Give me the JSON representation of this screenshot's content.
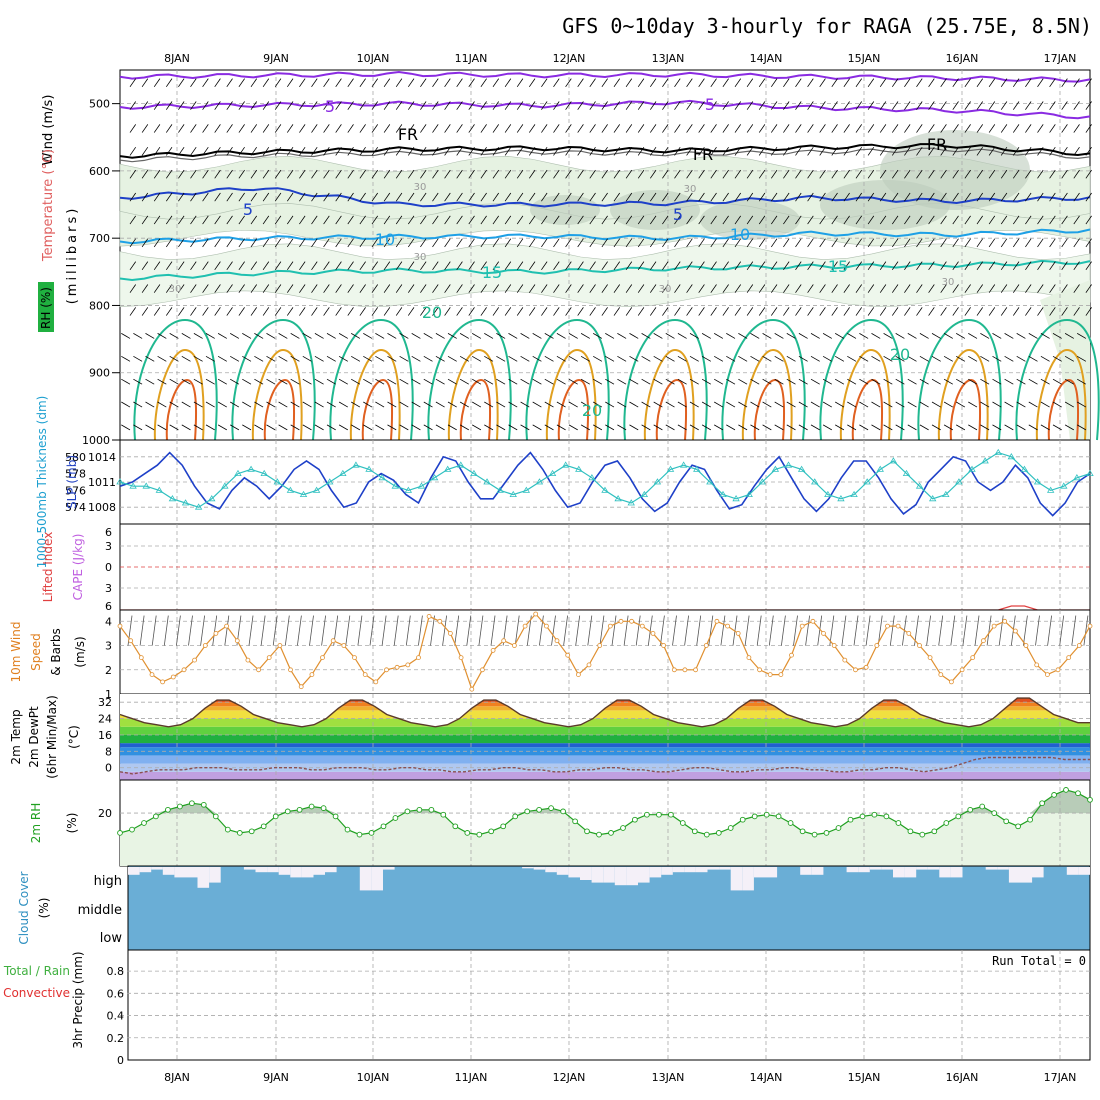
{
  "title": "GFS 0~10day 3-hourly for RAGA (25.75E, 8.5N)",
  "colors": {
    "purple": "#8a2be2",
    "blue": "#1e40c8",
    "lightblue": "#1ea0e6",
    "teal": "#20c0b0",
    "green": "#20b890",
    "orange": "#e0a020",
    "darkorange": "#e06020",
    "magenta": "#e01070",
    "cyan": "#30c0c0",
    "rhfill": "#e8f4e4",
    "cloud": "#6aaed6",
    "cloudlight": "#f4f0f8"
  },
  "dates": [
    "8JAN",
    "9JAN",
    "10JAN",
    "11JAN",
    "12JAN",
    "13JAN",
    "14JAN",
    "15JAN",
    "16JAN",
    "17JAN"
  ],
  "chart_data": [
    {
      "panel": "upper_air",
      "type": "heatmap",
      "ylabels": [
        "Wind (m/s)",
        "Temperature (°C)",
        "RH (%)",
        "(millibars)"
      ],
      "y_ticks": [
        500,
        600,
        700,
        800,
        900,
        1000
      ],
      "ylim": [
        1000,
        450
      ],
      "contour_labels": [
        "5",
        "5",
        "FR",
        "FR",
        "FR",
        "5",
        "5",
        "10",
        "10",
        "15",
        "15",
        "20",
        "20",
        "20",
        "30",
        "30",
        "30",
        "30",
        "30",
        "30"
      ],
      "isotherms": [
        {
          "name": "5",
          "pressure_levels": [
            505,
            502,
            500,
            503,
            498,
            506
          ]
        },
        {
          "name": "FR",
          "pressure_levels": [
            580,
            575,
            572,
            570,
            568,
            565
          ]
        },
        {
          "name": "5b",
          "pressure_levels": [
            650,
            640,
            655,
            650,
            648,
            645
          ]
        },
        {
          "name": "10",
          "pressure_levels": [
            705,
            700,
            698,
            695,
            700,
            690
          ]
        },
        {
          "name": "15",
          "pressure_levels": [
            760,
            750,
            752,
            748,
            745,
            740
          ]
        },
        {
          "name": "20",
          "pressure_levels": [
            820,
            840,
            810,
            830,
            820,
            810
          ]
        }
      ]
    },
    {
      "panel": "slp_thickness",
      "type": "line",
      "ylabels": [
        "1000-500mb Thickness (dm)",
        "SLP (mb)"
      ],
      "y_ticks_left": [
        574,
        576,
        578,
        580
      ],
      "y_ticks_right": [
        1008,
        1011,
        1014
      ],
      "series": [
        {
          "name": "SLP (mb)",
          "axis": "right",
          "values": [
            1010.5,
            1011,
            1012,
            1013,
            1014.5,
            1013,
            1010.5,
            1008.5,
            1007.8,
            1010,
            1011.5,
            1010.5,
            1009,
            1010.5,
            1012.5,
            1013.5,
            1012.5,
            1010,
            1008,
            1008.5,
            1011,
            1012,
            1011.2,
            1009.5,
            1008.5,
            1011.5,
            1014,
            1013.5,
            1011,
            1009,
            1009,
            1011,
            1013,
            1014.5,
            1012.5,
            1010,
            1008,
            1008.5,
            1011,
            1013,
            1013.5,
            1011.5,
            1009,
            1007.5,
            1008.5,
            1011,
            1013,
            1012.5,
            1010,
            1007.8,
            1008.3,
            1010.5,
            1012.5,
            1014,
            1011.5,
            1009,
            1007.5,
            1009,
            1011.5,
            1013.5,
            1013.5,
            1011.5,
            1009,
            1007.2,
            1008.3,
            1011,
            1012.5,
            1014,
            1013.5,
            1011,
            1010,
            1011,
            1013,
            1011.5,
            1008.5,
            1007,
            1008.5,
            1011,
            1012
          ]
        },
        {
          "name": "Thickness (dm)",
          "axis": "left",
          "values": [
            577,
            576.5,
            576.5,
            576,
            575,
            574.5,
            574,
            575,
            576.5,
            578,
            578.5,
            578,
            577,
            576,
            575.5,
            576,
            577,
            578,
            579,
            578.5,
            577.5,
            576.5,
            576,
            576.5,
            577.5,
            578.5,
            579,
            578,
            577,
            576,
            575.5,
            576,
            577,
            578,
            579,
            578.5,
            577.5,
            576,
            575,
            574.5,
            575.5,
            577,
            578.5,
            579,
            578.5,
            577,
            575.5,
            575,
            575.5,
            577,
            578.5,
            579,
            578.5,
            577,
            575.5,
            575,
            575.5,
            577,
            578.5,
            579.5,
            578,
            576.5,
            575,
            575.5,
            577,
            578.5,
            579.5,
            580.5,
            580,
            578.5,
            577,
            576,
            576.5,
            577.5,
            578
          ]
        }
      ]
    },
    {
      "panel": "cape_li",
      "type": "line",
      "ylabels": [
        "Lifted Index",
        "CAPE (J/kg)"
      ],
      "y_ticks": [
        6,
        3,
        0,
        3,
        6
      ],
      "series": [
        {
          "name": "CAPE (J/kg)",
          "values": [
            0,
            0,
            0,
            0,
            0,
            0,
            0,
            0,
            0,
            0,
            0,
            0,
            0,
            0,
            0,
            0,
            0,
            0,
            0,
            0,
            0,
            0,
            0,
            0,
            0,
            0,
            0,
            0,
            0,
            0,
            0,
            0,
            0,
            0,
            0,
            0,
            0,
            0,
            0,
            0,
            0,
            0,
            0,
            0,
            0,
            0,
            0,
            0,
            0,
            0,
            0,
            0,
            0,
            0,
            0,
            0,
            0,
            0,
            0,
            0,
            0,
            0,
            0,
            0,
            0,
            0,
            0,
            0,
            4,
            4,
            0,
            0,
            0,
            0,
            0
          ]
        }
      ]
    },
    {
      "panel": "wind10m",
      "type": "line",
      "ylabels": [
        "10m Wind",
        "Speed",
        "& Barbs",
        "(m/s)"
      ],
      "y_ticks": [
        1,
        2,
        3,
        4
      ],
      "series": [
        {
          "name": "Speed",
          "values": [
            3.8,
            3.2,
            2.5,
            1.8,
            1.5,
            1.7,
            2.0,
            2.4,
            3.0,
            3.5,
            3.8,
            3.2,
            2.4,
            2.0,
            2.5,
            3.0,
            2.0,
            1.3,
            1.8,
            2.5,
            3.2,
            3.0,
            2.5,
            1.8,
            1.5,
            2.0,
            2.1,
            2.2,
            2.5,
            4.2,
            4.0,
            3.5,
            2.5,
            1.2,
            2.0,
            2.8,
            3.2,
            3.0,
            3.8,
            4.3,
            3.8,
            3.2,
            2.6,
            1.8,
            2.2,
            3.0,
            3.8,
            4.0,
            4.0,
            3.8,
            3.5,
            3.0,
            2.0,
            2.0,
            2.0,
            3.0,
            4.0,
            3.8,
            3.5,
            2.5,
            2.0,
            1.8,
            1.8,
            2.6,
            3.8,
            4.0,
            3.5,
            3.0,
            2.4,
            2.0,
            2.1,
            3.0,
            3.8,
            3.8,
            3.5,
            3.0,
            2.5,
            1.8,
            1.5,
            2.0,
            2.5,
            3.2,
            3.8,
            4.0,
            3.6,
            3.0,
            2.2,
            1.8,
            2.0,
            2.5,
            3.0,
            3.8
          ]
        }
      ]
    },
    {
      "panel": "temp2m",
      "type": "area",
      "ylabels": [
        "2m Temp",
        "2m DewPt",
        "(6hr Min/Max)",
        "(°C)"
      ],
      "y_ticks": [
        0,
        8,
        16,
        24,
        32
      ],
      "series": [
        {
          "name": "2m Temp",
          "values": [
            26,
            24,
            22,
            21,
            20,
            21,
            24,
            29,
            33,
            33,
            30,
            26,
            24,
            22,
            21,
            20,
            21,
            24,
            29,
            33,
            33,
            30,
            26,
            24,
            22,
            21,
            20,
            21,
            24,
            29,
            33,
            33,
            30,
            26,
            24,
            22,
            21,
            20,
            21,
            24,
            29,
            33,
            33,
            30,
            26,
            24,
            22,
            21,
            20,
            21,
            24,
            29,
            33,
            33,
            30,
            26,
            24,
            22,
            21,
            20,
            21,
            24,
            29,
            33,
            33,
            30,
            26,
            24,
            22,
            21,
            20,
            21,
            24,
            29,
            34,
            34,
            30,
            26,
            24,
            22,
            22
          ]
        },
        {
          "name": "2m DewPt",
          "values": [
            -2,
            -3,
            -2,
            -1,
            -1,
            -1,
            0,
            0,
            0,
            -1,
            -1,
            -1,
            0,
            0,
            0,
            -1,
            -1,
            0,
            0,
            0,
            -1,
            -1,
            0,
            0,
            -1,
            -1,
            -2,
            -2,
            -1,
            -1,
            0,
            0,
            -1,
            -1,
            -2,
            -2,
            -1,
            -1,
            0,
            0,
            -1,
            -1,
            -2,
            -2,
            -1,
            0,
            0,
            -1,
            -2,
            -2,
            -1,
            -1,
            0,
            0,
            -1,
            -1,
            -2,
            -2,
            -1,
            -1,
            0,
            0,
            -1,
            -2,
            -1,
            0,
            2,
            4,
            5,
            5,
            5,
            5,
            5,
            5,
            4,
            4,
            4
          ]
        }
      ]
    },
    {
      "panel": "rh2m",
      "type": "area",
      "ylabels": [
        "2m RH",
        "(%)"
      ],
      "y_ticks": [
        20
      ],
      "series": [
        {
          "name": "2m RH",
          "values": [
            8,
            10,
            14,
            18,
            22,
            24,
            26,
            25,
            18,
            10,
            8,
            9,
            12,
            18,
            21,
            22,
            24,
            23,
            18,
            10,
            7,
            8,
            12,
            17,
            21,
            22,
            22,
            19,
            12,
            8,
            7,
            9,
            12,
            18,
            21,
            22,
            23,
            21,
            15,
            9,
            7,
            8,
            11,
            16,
            19,
            19,
            19,
            14,
            9,
            7,
            8,
            11,
            16,
            18,
            19,
            18,
            14,
            9,
            7,
            8,
            11,
            16,
            18,
            19,
            18,
            14,
            9,
            7,
            9,
            14,
            18,
            22,
            24,
            20,
            15,
            12,
            16,
            26,
            31,
            34,
            32,
            28
          ]
        }
      ]
    },
    {
      "panel": "cloud",
      "type": "bar",
      "ylabels": [
        "Cloud Cover",
        "(%)"
      ],
      "y_ticks": [
        "high",
        "middle",
        "low"
      ],
      "series": [
        {
          "name": "high",
          "values": [
            70,
            80,
            90,
            70,
            60,
            60,
            20,
            40,
            100,
            100,
            90,
            80,
            80,
            70,
            60,
            60,
            70,
            80,
            100,
            100,
            10,
            10,
            90,
            100,
            100,
            100,
            100,
            100,
            100,
            100,
            100,
            100,
            100,
            100,
            95,
            90,
            80,
            70,
            60,
            50,
            40,
            40,
            30,
            30,
            40,
            60,
            70,
            80,
            80,
            80,
            90,
            90,
            10,
            10,
            60,
            60,
            100,
            100,
            70,
            70,
            100,
            100,
            80,
            80,
            90,
            90,
            60,
            60,
            90,
            90,
            60,
            60,
            100,
            100,
            90,
            90,
            40,
            40,
            60,
            100,
            100,
            70,
            70
          ]
        }
      ]
    },
    {
      "panel": "precip",
      "type": "bar",
      "ylabels": [
        "Total / Rain",
        "Convective",
        "3hr Precip (mm)"
      ],
      "y_ticks": [
        0,
        0.2,
        0.4,
        0.6,
        0.8
      ],
      "annotation": "Run Total = 0",
      "series": [
        {
          "name": "Total",
          "values": [
            0
          ]
        }
      ]
    }
  ]
}
